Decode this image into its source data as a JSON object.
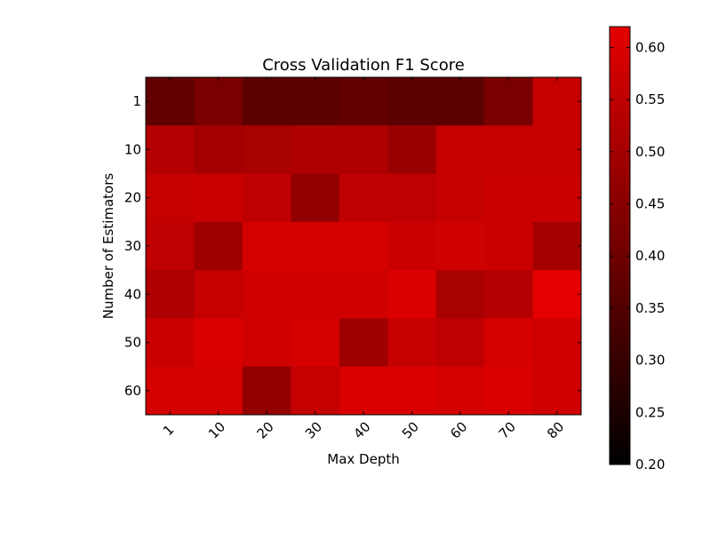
{
  "chart_data": {
    "type": "heatmap",
    "title": "Cross Validation F1 Score",
    "xlabel": "Max Depth",
    "ylabel": "Number of Estimators",
    "x_categories": [
      "1",
      "10",
      "20",
      "30",
      "40",
      "50",
      "60",
      "70",
      "80"
    ],
    "y_categories": [
      "1",
      "10",
      "20",
      "30",
      "40",
      "50",
      "60"
    ],
    "values": [
      [
        0.38,
        0.42,
        0.37,
        0.37,
        0.38,
        0.37,
        0.37,
        0.42,
        0.56
      ],
      [
        0.53,
        0.5,
        0.51,
        0.52,
        0.52,
        0.48,
        0.56,
        0.56,
        0.56
      ],
      [
        0.56,
        0.57,
        0.55,
        0.47,
        0.55,
        0.55,
        0.56,
        0.57,
        0.57
      ],
      [
        0.55,
        0.49,
        0.59,
        0.59,
        0.59,
        0.57,
        0.58,
        0.57,
        0.5
      ],
      [
        0.52,
        0.56,
        0.58,
        0.58,
        0.58,
        0.6,
        0.51,
        0.53,
        0.62
      ],
      [
        0.57,
        0.6,
        0.58,
        0.59,
        0.49,
        0.56,
        0.55,
        0.59,
        0.58
      ],
      [
        0.59,
        0.59,
        0.47,
        0.56,
        0.6,
        0.6,
        0.59,
        0.6,
        0.58
      ]
    ],
    "colorbar": {
      "min": 0.2,
      "max": 0.62,
      "ticks": [
        0.2,
        0.25,
        0.3,
        0.35,
        0.4,
        0.45,
        0.5,
        0.55,
        0.6
      ],
      "tick_labels": [
        "0.20",
        "0.25",
        "0.30",
        "0.35",
        "0.40",
        "0.45",
        "0.50",
        "0.55",
        "0.60"
      ],
      "colormap": "black-to-red"
    },
    "colors": {
      "low": "#000000",
      "high": "#e50000"
    }
  }
}
